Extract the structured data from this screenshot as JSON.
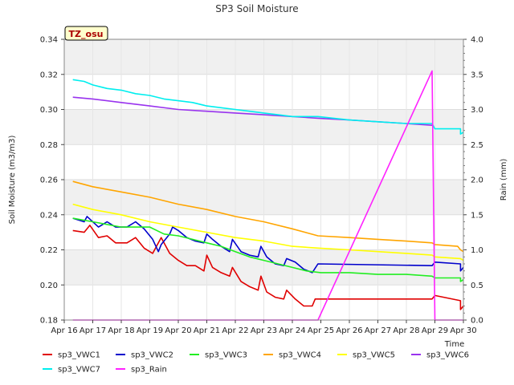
{
  "chart_data": {
    "type": "line",
    "title": "SP3 Soil Moisture",
    "xlabel": "Time",
    "ylabel": "Soil Moisture (m3/m3)",
    "y2label": "Rain (mm)",
    "badge": "TZ_osu",
    "xlim": [
      16,
      30
    ],
    "ylim": [
      0.18,
      0.34
    ],
    "y2lim": [
      0.0,
      4.0
    ],
    "x_ticks": [
      16,
      17,
      18,
      19,
      20,
      21,
      22,
      23,
      24,
      25,
      26,
      27,
      28,
      29,
      30
    ],
    "x_tick_labels": [
      "Apr 16",
      "Apr 17",
      "Apr 18",
      "Apr 19",
      "Apr 20",
      "Apr 21",
      "Apr 22",
      "Apr 23",
      "Apr 24",
      "Apr 25",
      "Apr 26",
      "Apr 27",
      "Apr 28",
      "Apr 29",
      "Apr 30"
    ],
    "y_ticks": [
      0.18,
      0.2,
      0.22,
      0.24,
      0.26,
      0.28,
      0.3,
      0.32,
      0.34
    ],
    "y_tick_labels": [
      "0.18",
      "0.20",
      "0.22",
      "0.24",
      "0.26",
      "0.28",
      "0.30",
      "0.32",
      "0.34"
    ],
    "y2_ticks": [
      0.0,
      0.5,
      1.0,
      1.5,
      2.0,
      2.5,
      3.0,
      3.5,
      4.0
    ],
    "y2_tick_labels": [
      "0.0",
      "0.5",
      "1.0",
      "1.5",
      "2.0",
      "2.5",
      "3.0",
      "3.5",
      "4.0"
    ],
    "grid": true,
    "legend_position": "bottom",
    "series": [
      {
        "name": "sp3_VWC1",
        "color": "#e00000",
        "axis": "left",
        "x": [
          16.3,
          16.7,
          16.9,
          17.2,
          17.5,
          17.8,
          18.2,
          18.5,
          18.8,
          19.1,
          19.4,
          19.7,
          20.0,
          20.3,
          20.6,
          20.9,
          21.0,
          21.2,
          21.5,
          21.8,
          21.9,
          22.2,
          22.5,
          22.8,
          22.9,
          23.1,
          23.4,
          23.7,
          23.8,
          24.1,
          24.4,
          24.7,
          24.8,
          28.9,
          29.0,
          29.9,
          29.9,
          30.0
        ],
        "y": [
          0.231,
          0.23,
          0.234,
          0.227,
          0.228,
          0.224,
          0.224,
          0.227,
          0.221,
          0.218,
          0.227,
          0.218,
          0.214,
          0.211,
          0.211,
          0.208,
          0.217,
          0.21,
          0.207,
          0.205,
          0.21,
          0.202,
          0.199,
          0.197,
          0.205,
          0.196,
          0.193,
          0.192,
          0.197,
          0.192,
          0.188,
          0.188,
          0.192,
          0.192,
          0.194,
          0.191,
          0.186,
          0.188
        ]
      },
      {
        "name": "sp3_VWC2",
        "color": "#0000cc",
        "axis": "left",
        "x": [
          16.3,
          16.7,
          16.8,
          17.2,
          17.5,
          17.8,
          18.2,
          18.5,
          18.8,
          19.1,
          19.3,
          19.4,
          19.7,
          19.8,
          20.0,
          20.3,
          20.6,
          20.9,
          21.0,
          21.2,
          21.5,
          21.8,
          21.9,
          22.2,
          22.5,
          22.8,
          22.9,
          23.1,
          23.4,
          23.7,
          23.8,
          24.1,
          24.4,
          24.7,
          24.9,
          28.9,
          29.0,
          29.9,
          29.9,
          30.0
        ],
        "y": [
          0.238,
          0.236,
          0.239,
          0.233,
          0.236,
          0.233,
          0.233,
          0.236,
          0.232,
          0.226,
          0.219,
          0.223,
          0.229,
          0.233,
          0.231,
          0.227,
          0.225,
          0.224,
          0.229,
          0.226,
          0.222,
          0.219,
          0.226,
          0.219,
          0.217,
          0.216,
          0.222,
          0.216,
          0.212,
          0.211,
          0.215,
          0.213,
          0.209,
          0.207,
          0.212,
          0.211,
          0.213,
          0.212,
          0.208,
          0.21
        ]
      },
      {
        "name": "sp3_VWC3",
        "color": "#22ee22",
        "axis": "left",
        "x": [
          16.3,
          17.0,
          18.0,
          19.0,
          19.5,
          20.0,
          20.5,
          21.0,
          21.5,
          22.0,
          22.5,
          23.0,
          23.5,
          24.0,
          24.5,
          25.0,
          26.0,
          27.0,
          28.0,
          28.9,
          29.0,
          29.9,
          29.9,
          30.0
        ],
        "y": [
          0.238,
          0.236,
          0.233,
          0.233,
          0.229,
          0.228,
          0.226,
          0.224,
          0.222,
          0.219,
          0.216,
          0.214,
          0.212,
          0.21,
          0.208,
          0.207,
          0.207,
          0.206,
          0.206,
          0.205,
          0.204,
          0.204,
          0.202,
          0.203
        ]
      },
      {
        "name": "sp3_VWC4",
        "color": "#ffa500",
        "axis": "left",
        "x": [
          16.3,
          17.0,
          18.0,
          19.0,
          20.0,
          21.0,
          22.0,
          23.0,
          24.0,
          24.9,
          26.0,
          27.0,
          28.0,
          28.9,
          29.0,
          29.8,
          29.9,
          30.0
        ],
        "y": [
          0.259,
          0.256,
          0.253,
          0.25,
          0.246,
          0.243,
          0.239,
          0.236,
          0.232,
          0.228,
          0.227,
          0.226,
          0.225,
          0.224,
          0.223,
          0.222,
          0.22,
          0.219
        ]
      },
      {
        "name": "sp3_VWC5",
        "color": "#ffff00",
        "axis": "left",
        "x": [
          16.3,
          17.0,
          18.0,
          19.0,
          20.0,
          21.0,
          22.0,
          23.0,
          24.0,
          24.9,
          26.0,
          27.0,
          28.0,
          28.9,
          29.0,
          29.9,
          30.0
        ],
        "y": [
          0.246,
          0.243,
          0.24,
          0.236,
          0.233,
          0.23,
          0.227,
          0.225,
          0.222,
          0.221,
          0.22,
          0.219,
          0.218,
          0.217,
          0.216,
          0.215,
          0.214
        ]
      },
      {
        "name": "sp3_VWC6",
        "color": "#9933ee",
        "axis": "left",
        "x": [
          16.3,
          17.0,
          18.0,
          19.0,
          20.0,
          21.0,
          22.0,
          23.0,
          24.0,
          24.9,
          26.0,
          27.0,
          28.0,
          28.9
        ],
        "y": [
          0.307,
          0.306,
          0.304,
          0.302,
          0.3,
          0.299,
          0.298,
          0.297,
          0.296,
          0.295,
          0.294,
          0.293,
          0.292,
          0.291
        ]
      },
      {
        "name": "sp3_VWC7",
        "color": "#00eeee",
        "axis": "left",
        "x": [
          16.3,
          16.7,
          17.0,
          17.5,
          18.0,
          18.5,
          19.0,
          19.5,
          20.0,
          20.5,
          21.0,
          21.5,
          22.0,
          22.5,
          23.0,
          23.5,
          24.0,
          24.9,
          26.0,
          27.0,
          28.0,
          28.9,
          29.0,
          29.9,
          29.9,
          30.0
        ],
        "y": [
          0.317,
          0.316,
          0.314,
          0.312,
          0.311,
          0.309,
          0.308,
          0.306,
          0.305,
          0.304,
          0.302,
          0.301,
          0.3,
          0.299,
          0.298,
          0.297,
          0.296,
          0.296,
          0.294,
          0.293,
          0.292,
          0.292,
          0.289,
          0.289,
          0.286,
          0.287
        ]
      },
      {
        "name": "sp3_Rain",
        "color": "#ff22ff",
        "axis": "right",
        "x": [
          16.3,
          24.9,
          28.9,
          29.0,
          30.0
        ],
        "y": [
          0.0,
          0.0,
          3.55,
          0.0,
          0.0
        ]
      }
    ]
  }
}
